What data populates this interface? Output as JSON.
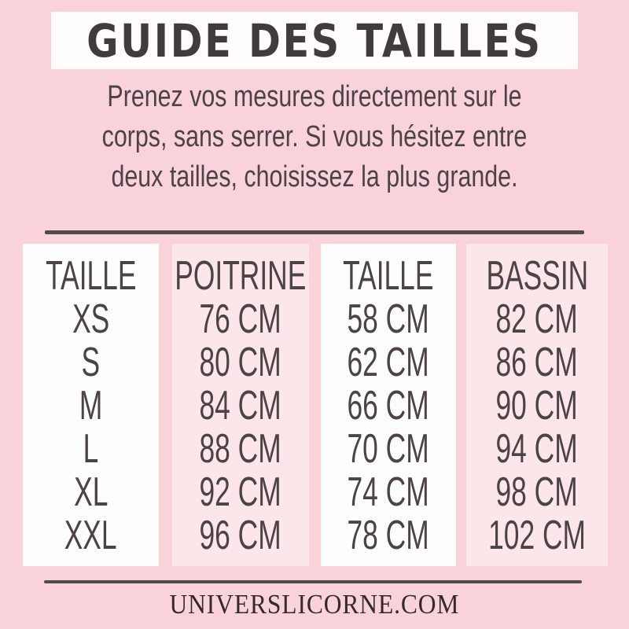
{
  "header": {
    "title": "GUIDE DES TAILLES"
  },
  "intro": {
    "lines": [
      "Prenez vos mesures directement sur le",
      "corps, sans serrer. Si vous hésitez entre",
      "deux tailles, choisissez la plus grande."
    ]
  },
  "size_table": {
    "columns": [
      {
        "header": "TAILLE",
        "tone": "white",
        "values": [
          "XS",
          "S",
          "M",
          "L",
          "XL",
          "XXL"
        ]
      },
      {
        "header": "POITRINE",
        "tone": "pink",
        "values": [
          "76 CM",
          "80 CM",
          "84 CM",
          "88 CM",
          "92 CM",
          "96 CM"
        ]
      },
      {
        "header": "TAILLE",
        "tone": "white",
        "values": [
          "58 CM",
          "62 CM",
          "66 CM",
          "70 CM",
          "74 CM",
          "78 CM"
        ]
      },
      {
        "header": "BASSIN",
        "tone": "pink",
        "values": [
          "82 CM",
          "86 CM",
          "90 CM",
          "94 CM",
          "98 CM",
          "102 CM"
        ]
      }
    ]
  },
  "footer": {
    "url": "UNIVERSLICORNE.COM"
  },
  "colors": {
    "background_pink": "#fad2d9",
    "panel_white": "#fefdfd",
    "panel_light_pink": "#fce6e9",
    "title_text": "#403c3e",
    "body_text": "#4b4347",
    "divider_line": "#54494b",
    "footer_text": "#332a2c"
  }
}
